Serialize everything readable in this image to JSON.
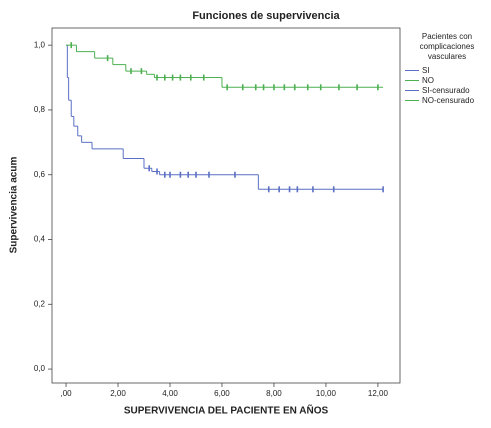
{
  "chart_data": {
    "type": "step",
    "title": "Funciones de supervivencia",
    "x_label": "SUPERVIVENCIA DEL PACIENTE EN AÑOS",
    "y_label": "Supervivencia acum",
    "legend_title": "Pacientes con complicaciones vasculares",
    "xlim": [
      -0.54,
      12.85
    ],
    "ylim": [
      -0.043,
      1.053
    ],
    "xticks": [
      {
        "value": 0,
        "label": ",00"
      },
      {
        "value": 2,
        "label": "2,00"
      },
      {
        "value": 4,
        "label": "4,00"
      },
      {
        "value": 6,
        "label": "6,00"
      },
      {
        "value": 8,
        "label": "8,00"
      },
      {
        "value": 10,
        "label": "10,00"
      },
      {
        "value": 12,
        "label": "12,00"
      }
    ],
    "yticks": [
      {
        "value": 0,
        "label": "0,0"
      },
      {
        "value": 0.2,
        "label": "0,2"
      },
      {
        "value": 0.4,
        "label": "0,4"
      },
      {
        "value": 0.6,
        "label": "0,6"
      },
      {
        "value": 0.8,
        "label": "0,8"
      },
      {
        "value": 1,
        "label": "1,0"
      }
    ],
    "series": [
      {
        "name": "SI",
        "color": "#5a6fc4",
        "marker": "step",
        "x": [
          0,
          0.05,
          0.1,
          0.2,
          0.3,
          0.45,
          0.6,
          1.0,
          2.2,
          3.0,
          3.3,
          3.6,
          7.4,
          12.2
        ],
        "values": [
          1.0,
          0.9,
          0.83,
          0.78,
          0.75,
          0.72,
          0.7,
          0.68,
          0.65,
          0.62,
          0.61,
          0.6,
          0.555,
          0.555
        ]
      },
      {
        "name": "NO",
        "color": "#4caf50",
        "marker": "step",
        "x": [
          0,
          0.4,
          1.1,
          1.8,
          2.3,
          3.1,
          3.4,
          6.0,
          12.2
        ],
        "values": [
          1.0,
          0.98,
          0.96,
          0.94,
          0.92,
          0.91,
          0.9,
          0.87,
          0.87
        ]
      },
      {
        "name": "SI-censurado",
        "color": "#5a6fc4",
        "marker": "tick",
        "x": [
          3.2,
          3.5,
          3.8,
          4.0,
          4.4,
          4.7,
          5.0,
          5.5,
          6.5,
          7.8,
          8.2,
          8.6,
          8.9,
          9.5,
          10.3,
          12.2
        ],
        "values": [
          0.62,
          0.61,
          0.6,
          0.6,
          0.6,
          0.6,
          0.6,
          0.6,
          0.6,
          0.555,
          0.555,
          0.555,
          0.555,
          0.555,
          0.555,
          0.555
        ]
      },
      {
        "name": "NO-censurado",
        "color": "#4caf50",
        "marker": "tick",
        "x": [
          0.2,
          1.6,
          2.5,
          2.9,
          3.5,
          3.8,
          4.1,
          4.4,
          4.8,
          5.3,
          6.2,
          6.8,
          7.3,
          7.6,
          8.0,
          8.4,
          8.8,
          9.3,
          9.8,
          10.5,
          11.2,
          12.0
        ],
        "values": [
          1.0,
          0.96,
          0.92,
          0.92,
          0.9,
          0.9,
          0.9,
          0.9,
          0.9,
          0.9,
          0.87,
          0.87,
          0.87,
          0.87,
          0.87,
          0.87,
          0.87,
          0.87,
          0.87,
          0.87,
          0.87,
          0.87
        ]
      }
    ]
  }
}
